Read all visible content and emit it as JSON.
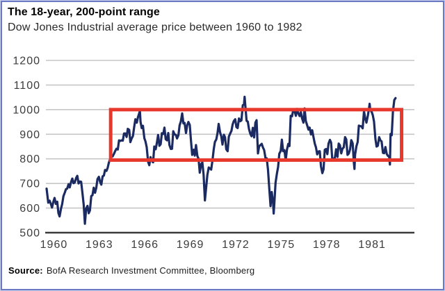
{
  "header": {
    "title": "The 18-year, 200-point range",
    "subtitle": "Dow Jones Industrial average price between 1960 to 1982"
  },
  "source": {
    "label": "Source:",
    "text": "BofA Research Investment Committee, Bloomberg"
  },
  "colors": {
    "line": "#1b2b61",
    "box": "#e8382c",
    "grid": "#c6c6c6",
    "axis": "#3a3a3a",
    "tick_text": "#3c3c3c"
  },
  "chart_data": {
    "type": "line",
    "title": "The 18-year, 200-point range",
    "subtitle": "Dow Jones Industrial average price between 1960 to 1982",
    "xlabel": "",
    "ylabel": "",
    "x_ticks": [
      1960,
      1963,
      1966,
      1969,
      1972,
      1975,
      1978,
      1981
    ],
    "y_ticks": [
      500,
      600,
      700,
      800,
      900,
      1000,
      1100,
      1200
    ],
    "xlim": [
      1959.97,
      1984.2
    ],
    "ylim": [
      500,
      1250
    ],
    "grid": "horizontal",
    "legend": "none",
    "highlight_box": {
      "x0": 1964.2,
      "x1": 1983.4,
      "y0": 795,
      "y1": 1000,
      "color": "#e8382c"
    },
    "series": [
      {
        "name": "Dow Jones Industrial Average",
        "points": [
          [
            1959.97,
            679
          ],
          [
            1960.08,
            622
          ],
          [
            1960.17,
            630
          ],
          [
            1960.25,
            617
          ],
          [
            1960.33,
            602
          ],
          [
            1960.42,
            626
          ],
          [
            1960.5,
            641
          ],
          [
            1960.58,
            617
          ],
          [
            1960.67,
            626
          ],
          [
            1960.75,
            580
          ],
          [
            1960.83,
            566
          ],
          [
            1960.92,
            597
          ],
          [
            1961.0,
            616
          ],
          [
            1961.08,
            648
          ],
          [
            1961.17,
            662
          ],
          [
            1961.25,
            677
          ],
          [
            1961.33,
            679
          ],
          [
            1961.42,
            697
          ],
          [
            1961.5,
            684
          ],
          [
            1961.58,
            705
          ],
          [
            1961.67,
            720
          ],
          [
            1961.75,
            701
          ],
          [
            1961.83,
            704
          ],
          [
            1961.92,
            722
          ],
          [
            1962.0,
            731
          ],
          [
            1962.08,
            700
          ],
          [
            1962.17,
            708
          ],
          [
            1962.25,
            707
          ],
          [
            1962.33,
            665
          ],
          [
            1962.42,
            613
          ],
          [
            1962.5,
            536
          ],
          [
            1962.58,
            598
          ],
          [
            1962.67,
            609
          ],
          [
            1962.75,
            579
          ],
          [
            1962.83,
            590
          ],
          [
            1962.92,
            649
          ],
          [
            1963.0,
            652
          ],
          [
            1963.08,
            683
          ],
          [
            1963.17,
            662
          ],
          [
            1963.25,
            683
          ],
          [
            1963.33,
            718
          ],
          [
            1963.42,
            727
          ],
          [
            1963.5,
            707
          ],
          [
            1963.58,
            695
          ],
          [
            1963.67,
            729
          ],
          [
            1963.75,
            732
          ],
          [
            1963.83,
            755
          ],
          [
            1963.92,
            751
          ],
          [
            1964.0,
            763
          ],
          [
            1964.08,
            785
          ],
          [
            1964.17,
            800
          ],
          [
            1964.25,
            813
          ],
          [
            1964.33,
            810
          ],
          [
            1964.42,
            821
          ],
          [
            1964.5,
            832
          ],
          [
            1964.58,
            841
          ],
          [
            1964.67,
            838
          ],
          [
            1964.75,
            875
          ],
          [
            1964.83,
            873
          ],
          [
            1964.92,
            875
          ],
          [
            1965.0,
            874
          ],
          [
            1965.08,
            903
          ],
          [
            1965.17,
            903
          ],
          [
            1965.25,
            889
          ],
          [
            1965.33,
            922
          ],
          [
            1965.42,
            918
          ],
          [
            1965.5,
            868
          ],
          [
            1965.58,
            882
          ],
          [
            1965.67,
            893
          ],
          [
            1965.75,
            930
          ],
          [
            1965.83,
            961
          ],
          [
            1965.92,
            947
          ],
          [
            1966.0,
            969
          ],
          [
            1966.08,
            984
          ],
          [
            1966.13,
            995
          ],
          [
            1966.17,
            951
          ],
          [
            1966.25,
            925
          ],
          [
            1966.33,
            934
          ],
          [
            1966.42,
            884
          ],
          [
            1966.5,
            870
          ],
          [
            1966.58,
            847
          ],
          [
            1966.67,
            788
          ],
          [
            1966.75,
            774
          ],
          [
            1966.83,
            807
          ],
          [
            1966.92,
            791
          ],
          [
            1967.0,
            786
          ],
          [
            1967.08,
            850
          ],
          [
            1967.17,
            839
          ],
          [
            1967.25,
            865
          ],
          [
            1967.33,
            897
          ],
          [
            1967.42,
            853
          ],
          [
            1967.5,
            860
          ],
          [
            1967.58,
            904
          ],
          [
            1967.67,
            901
          ],
          [
            1967.75,
            927
          ],
          [
            1967.83,
            880
          ],
          [
            1967.92,
            875
          ],
          [
            1968.0,
            905
          ],
          [
            1968.08,
            856
          ],
          [
            1968.17,
            840
          ],
          [
            1968.25,
            841
          ],
          [
            1968.33,
            912
          ],
          [
            1968.42,
            899
          ],
          [
            1968.5,
            898
          ],
          [
            1968.58,
            883
          ],
          [
            1968.67,
            896
          ],
          [
            1968.75,
            936
          ],
          [
            1968.83,
            952
          ],
          [
            1968.92,
            985
          ],
          [
            1969.0,
            944
          ],
          [
            1969.08,
            946
          ],
          [
            1969.17,
            905
          ],
          [
            1969.25,
            936
          ],
          [
            1969.33,
            950
          ],
          [
            1969.42,
            938
          ],
          [
            1969.5,
            873
          ],
          [
            1969.58,
            816
          ],
          [
            1969.67,
            837
          ],
          [
            1969.75,
            813
          ],
          [
            1969.83,
            856
          ],
          [
            1969.92,
            812
          ],
          [
            1970.0,
            800
          ],
          [
            1970.08,
            744
          ],
          [
            1970.17,
            778
          ],
          [
            1970.25,
            786
          ],
          [
            1970.33,
            736
          ],
          [
            1970.42,
            631
          ],
          [
            1970.5,
            684
          ],
          [
            1970.58,
            734
          ],
          [
            1970.67,
            765
          ],
          [
            1970.75,
            761
          ],
          [
            1970.83,
            756
          ],
          [
            1970.92,
            794
          ],
          [
            1971.0,
            839
          ],
          [
            1971.08,
            869
          ],
          [
            1971.17,
            879
          ],
          [
            1971.25,
            904
          ],
          [
            1971.33,
            942
          ],
          [
            1971.42,
            908
          ],
          [
            1971.5,
            891
          ],
          [
            1971.58,
            858
          ],
          [
            1971.67,
            898
          ],
          [
            1971.75,
            887
          ],
          [
            1971.83,
            839
          ],
          [
            1971.92,
            831
          ],
          [
            1972.0,
            890
          ],
          [
            1972.08,
            902
          ],
          [
            1972.17,
            914
          ],
          [
            1972.25,
            940
          ],
          [
            1972.33,
            954
          ],
          [
            1972.42,
            961
          ],
          [
            1972.5,
            929
          ],
          [
            1972.58,
            925
          ],
          [
            1972.67,
            964
          ],
          [
            1972.75,
            953
          ],
          [
            1972.83,
            956
          ],
          [
            1972.92,
            1018
          ],
          [
            1973.0,
            1020
          ],
          [
            1973.04,
            1052
          ],
          [
            1973.17,
            955
          ],
          [
            1973.25,
            951
          ],
          [
            1973.33,
            921
          ],
          [
            1973.42,
            901
          ],
          [
            1973.5,
            892
          ],
          [
            1973.58,
            926
          ],
          [
            1973.67,
            887
          ],
          [
            1973.75,
            947
          ],
          [
            1973.83,
            957
          ],
          [
            1973.92,
            822
          ],
          [
            1974.0,
            851
          ],
          [
            1974.08,
            856
          ],
          [
            1974.17,
            861
          ],
          [
            1974.25,
            846
          ],
          [
            1974.33,
            836
          ],
          [
            1974.42,
            802
          ],
          [
            1974.5,
            802
          ],
          [
            1974.58,
            757
          ],
          [
            1974.67,
            679
          ],
          [
            1974.75,
            608
          ],
          [
            1974.83,
            665
          ],
          [
            1974.92,
            619
          ],
          [
            1974.96,
            578
          ],
          [
            1975.0,
            616
          ],
          [
            1975.08,
            703
          ],
          [
            1975.17,
            739
          ],
          [
            1975.25,
            768
          ],
          [
            1975.33,
            821
          ],
          [
            1975.42,
            832
          ],
          [
            1975.5,
            878
          ],
          [
            1975.58,
            831
          ],
          [
            1975.67,
            835
          ],
          [
            1975.75,
            794
          ],
          [
            1975.83,
            836
          ],
          [
            1975.92,
            861
          ],
          [
            1976.0,
            852
          ],
          [
            1976.08,
            975
          ],
          [
            1976.17,
            973
          ],
          [
            1976.25,
            1000
          ],
          [
            1976.33,
            997
          ],
          [
            1976.42,
            975
          ],
          [
            1976.5,
            1003
          ],
          [
            1976.58,
            985
          ],
          [
            1976.67,
            974
          ],
          [
            1976.75,
            990
          ],
          [
            1976.83,
            965
          ],
          [
            1976.92,
            947
          ],
          [
            1977.0,
            1005
          ],
          [
            1977.08,
            954
          ],
          [
            1977.17,
            936
          ],
          [
            1977.25,
            919
          ],
          [
            1977.33,
            927
          ],
          [
            1977.42,
            899
          ],
          [
            1977.5,
            916
          ],
          [
            1977.58,
            891
          ],
          [
            1977.67,
            862
          ],
          [
            1977.75,
            847
          ],
          [
            1977.83,
            818
          ],
          [
            1977.92,
            830
          ],
          [
            1978.0,
            831
          ],
          [
            1978.08,
            770
          ],
          [
            1978.17,
            742
          ],
          [
            1978.25,
            757
          ],
          [
            1978.33,
            837
          ],
          [
            1978.42,
            840
          ],
          [
            1978.5,
            819
          ],
          [
            1978.58,
            862
          ],
          [
            1978.67,
            877
          ],
          [
            1978.75,
            866
          ],
          [
            1978.83,
            793
          ],
          [
            1978.92,
            799
          ],
          [
            1979.0,
            805
          ],
          [
            1979.08,
            839
          ],
          [
            1979.17,
            808
          ],
          [
            1979.25,
            862
          ],
          [
            1979.33,
            855
          ],
          [
            1979.42,
            822
          ],
          [
            1979.5,
            842
          ],
          [
            1979.58,
            846
          ],
          [
            1979.67,
            888
          ],
          [
            1979.75,
            879
          ],
          [
            1979.83,
            816
          ],
          [
            1979.92,
            822
          ],
          [
            1980.0,
            839
          ],
          [
            1980.08,
            876
          ],
          [
            1980.17,
            863
          ],
          [
            1980.25,
            786
          ],
          [
            1980.29,
            759
          ],
          [
            1980.33,
            817
          ],
          [
            1980.42,
            851
          ],
          [
            1980.5,
            868
          ],
          [
            1980.58,
            935
          ],
          [
            1980.67,
            933
          ],
          [
            1980.75,
            932
          ],
          [
            1980.83,
            924
          ],
          [
            1980.92,
            993
          ],
          [
            1981.0,
            964
          ],
          [
            1981.08,
            947
          ],
          [
            1981.17,
            975
          ],
          [
            1981.25,
            1004
          ],
          [
            1981.29,
            1024
          ],
          [
            1981.33,
            998
          ],
          [
            1981.42,
            992
          ],
          [
            1981.5,
            977
          ],
          [
            1981.58,
            952
          ],
          [
            1981.67,
            882
          ],
          [
            1981.75,
            850
          ],
          [
            1981.83,
            853
          ],
          [
            1981.92,
            888
          ],
          [
            1982.0,
            875
          ],
          [
            1982.08,
            871
          ],
          [
            1982.17,
            824
          ],
          [
            1982.25,
            823
          ],
          [
            1982.33,
            848
          ],
          [
            1982.42,
            820
          ],
          [
            1982.5,
            812
          ],
          [
            1982.58,
            809
          ],
          [
            1982.63,
            777
          ],
          [
            1982.67,
            901
          ],
          [
            1982.75,
            896
          ],
          [
            1982.83,
            992
          ],
          [
            1982.92,
            1039
          ],
          [
            1983.0,
            1047
          ]
        ]
      }
    ]
  }
}
